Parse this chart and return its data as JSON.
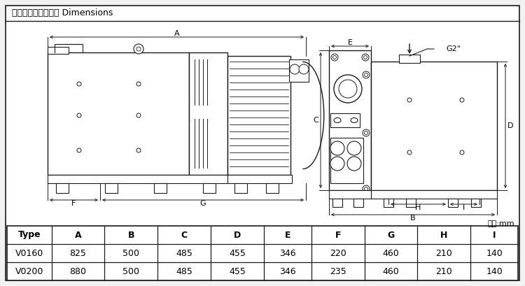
{
  "title": "外型尺寸及安裝尺寸 Dimensions",
  "line_color": "#1a1a1a",
  "bg_color": "#f2f2f2",
  "table_headers": [
    "Type",
    "A",
    "B",
    "C",
    "D",
    "E",
    "F",
    "G",
    "H",
    "I"
  ],
  "table_rows": [
    [
      "V0160",
      "825",
      "500",
      "485",
      "455",
      "346",
      "220",
      "460",
      "210",
      "140"
    ],
    [
      "V0200",
      "880",
      "500",
      "485",
      "455",
      "346",
      "235",
      "460",
      "210",
      "140"
    ]
  ],
  "unit_label": "单位:mm",
  "g2_label": "G2\""
}
